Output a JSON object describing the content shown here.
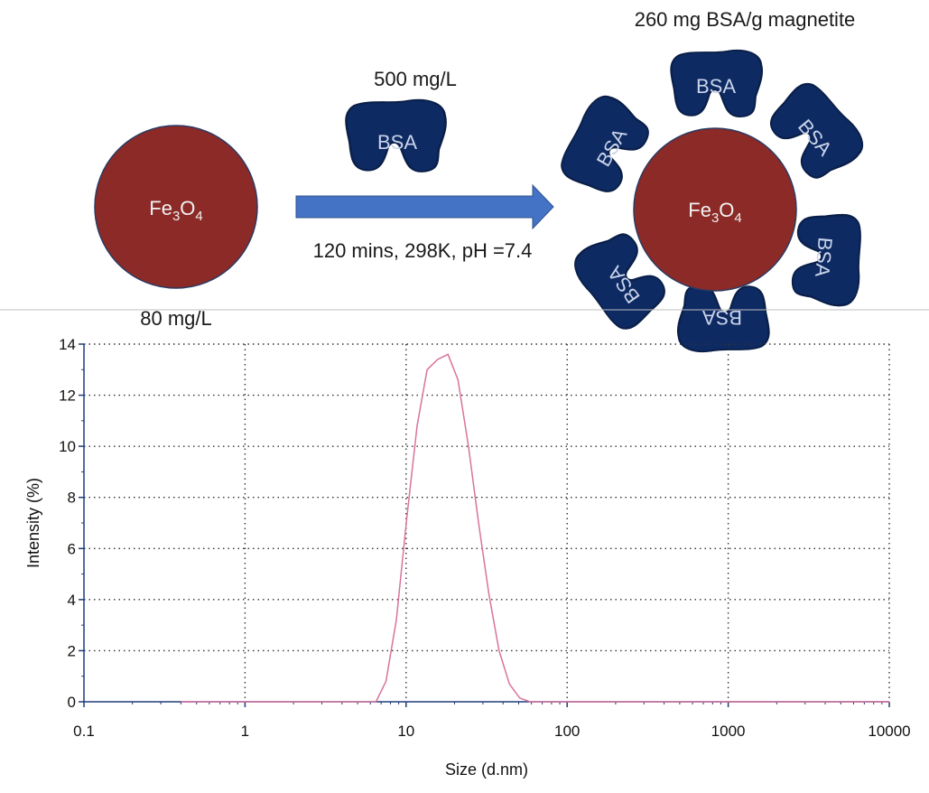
{
  "scheme": {
    "bare_particle": {
      "formula_main": "Fe",
      "sub1": "3",
      "mid": "O",
      "sub2": "4",
      "concentration": "80 mg/L"
    },
    "protein": {
      "label": "BSA",
      "concentration": "500 mg/L"
    },
    "conditions": "120 mins, 298K, pH =7.4",
    "coated_particle": {
      "formula_main": "Fe",
      "sub1": "3",
      "mid": "O",
      "sub2": "4",
      "loading": "260 mg BSA/g magnetite"
    },
    "colors": {
      "particle": "#8b2a27",
      "protein": "#0e2a63",
      "arrow": "#4472c4",
      "protein_text": "#c9d4ea"
    }
  },
  "chart_data": {
    "type": "line",
    "xscale": "log",
    "xlabel": "Size (d.nm)",
    "ylabel": "Intensity (%)",
    "xlim": [
      0.1,
      10000
    ],
    "ylim": [
      0,
      14
    ],
    "xticks": [
      "0.1",
      "1",
      "10",
      "100",
      "1000",
      "10000"
    ],
    "yticks": [
      "0",
      "2",
      "4",
      "6",
      "8",
      "10",
      "12",
      "14"
    ],
    "grid": "dotted",
    "line_color": "#d9739e",
    "series": [
      {
        "x": [
          0.4,
          1,
          3,
          6.5,
          7.5,
          8.7,
          10.1,
          11.7,
          13.5,
          15.7,
          18.2,
          21,
          24.4,
          28.2,
          32.7,
          37.8,
          43.8,
          50.7,
          58.8,
          68,
          100,
          1000,
          10000
        ],
        "y": [
          0,
          0,
          0,
          0,
          0.8,
          3.2,
          7.2,
          10.8,
          13.0,
          13.4,
          13.6,
          12.6,
          10.0,
          7.0,
          4.2,
          2.0,
          0.7,
          0.15,
          0,
          0,
          0,
          0,
          0
        ]
      }
    ]
  }
}
